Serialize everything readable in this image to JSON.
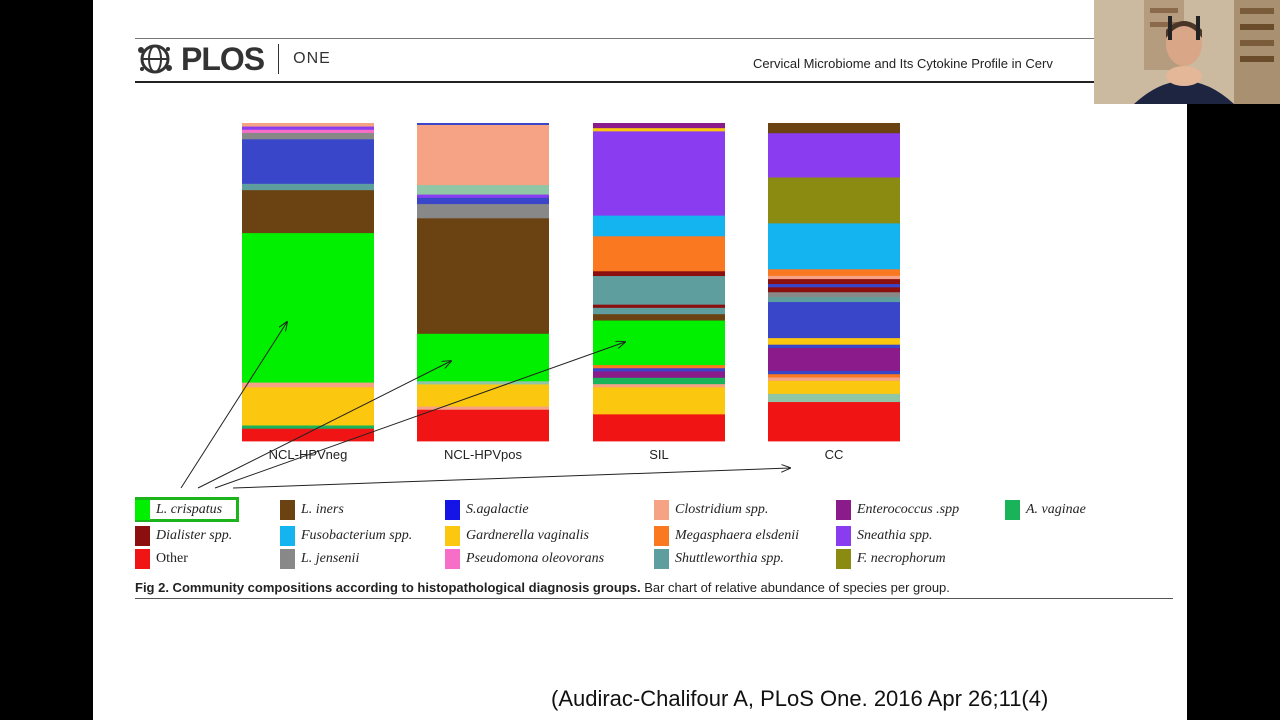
{
  "header": {
    "journal_logo": "PLOS",
    "journal_sub": "ONE",
    "running_title": "Cervical Microbiome and Its Cytokine Profile in Cerv"
  },
  "caption": {
    "label": "Fig 2. Community compositions according to histopathological diagnosis groups.",
    "text": "Bar chart of relative abundance of species per group."
  },
  "citation": "(Audirac-Chalifour A,  PLoS One. 2016 Apr 26;11(4)",
  "colors": {
    "L. crispatus": "#00f000",
    "L. iners": "#6b4211",
    "S.agalactie": "#1414e6",
    "Clostridium spp.": "#f5a285",
    "Enterococcus .spp": "#8b1a8b",
    "A. vaginae": "#19b35a",
    "Dialister spp.": "#8b0f0f",
    "Fusobacterium spp.": "#14b4f0",
    "Gardnerella vaginalis": "#fcc70f",
    "Megasphaera elsdenii": "#fa7820",
    "Sneathia spp.": "#8a3cf0",
    "Other": "#f01414",
    "L. jensenii": "#888888",
    "Pseudomona oleovorans": "#f76ec8",
    "Shuttleworthia spp.": "#5f9e9e",
    "F. necrophorum": "#8b8b11",
    "Misc blue": "#3a46c9",
    "Misc gray-green": "#8fc7a6"
  },
  "legend": [
    {
      "label": "L. crispatus",
      "italic": true
    },
    {
      "label": "L. iners",
      "italic": true
    },
    {
      "label": "S.agalactie",
      "italic": true
    },
    {
      "label": "Clostridium spp.",
      "italic": true
    },
    {
      "label": "Enterococcus .spp",
      "italic": true
    },
    {
      "label": "A. vaginae",
      "italic": true
    },
    {
      "label": "Dialister spp.",
      "italic": true
    },
    {
      "label": "Fusobacterium spp.",
      "italic": true
    },
    {
      "label": "Gardnerella vaginalis",
      "italic": true
    },
    {
      "label": "Megasphaera elsdenii",
      "italic": true
    },
    {
      "label": "Sneathia spp.",
      "italic": true
    },
    {
      "label": "Other",
      "italic": false
    },
    {
      "label": "L. jensenii",
      "italic": true
    },
    {
      "label": "Pseudomona oleovorans",
      "italic": true
    },
    {
      "label": "Shuttleworthia spp.",
      "italic": true
    },
    {
      "label": "F. necrophorum",
      "italic": true
    }
  ],
  "chart_data": {
    "type": "bar",
    "stacked": true,
    "orientation": "vertical",
    "categories": [
      "NCL-HPVneg",
      "NCL-HPVpos",
      "SIL",
      "CC"
    ],
    "ylim": [
      0,
      100
    ],
    "unit": "relative abundance (%)",
    "bars": [
      {
        "category": "NCL-HPVneg",
        "segments": [
          {
            "name": "Other",
            "value": 4
          },
          {
            "name": "A. vaginae",
            "value": 1
          },
          {
            "name": "Gardnerella vaginalis",
            "value": 12
          },
          {
            "name": "Clostridium spp.",
            "value": 1.5
          },
          {
            "name": "L. crispatus",
            "value": 47
          },
          {
            "name": "L. iners",
            "value": 13.5
          },
          {
            "name": "Shuttleworthia spp.",
            "value": 2
          },
          {
            "name": "Misc blue",
            "value": 14
          },
          {
            "name": "L. jensenii",
            "value": 2
          },
          {
            "name": "Pseudomona oleovorans",
            "value": 1
          },
          {
            "name": "Sneathia spp.",
            "value": 1
          },
          {
            "name": "Clostridium spp.",
            "value": 1
          }
        ]
      },
      {
        "category": "NCL-HPVpos",
        "segments": [
          {
            "name": "Other",
            "value": 10
          },
          {
            "name": "Clostridium spp.",
            "value": 1
          },
          {
            "name": "Gardnerella vaginalis",
            "value": 7
          },
          {
            "name": "Misc gray-green",
            "value": 1
          },
          {
            "name": "L. crispatus",
            "value": 15
          },
          {
            "name": "L. iners",
            "value": 36.5
          },
          {
            "name": "L. jensenii",
            "value": 4.5
          },
          {
            "name": "Misc blue",
            "value": 2
          },
          {
            "name": "Sneathia spp.",
            "value": 1
          },
          {
            "name": "Misc gray-green",
            "value": 3
          },
          {
            "name": "Clostridium spp.",
            "value": 19
          },
          {
            "name": "Misc blue",
            "value": 0.5
          }
        ]
      },
      {
        "category": "SIL",
        "segments": [
          {
            "name": "Other",
            "value": 8.5
          },
          {
            "name": "Gardnerella vaginalis",
            "value": 8.5
          },
          {
            "name": "Clostridium spp.",
            "value": 1
          },
          {
            "name": "A. vaginae",
            "value": 2
          },
          {
            "name": "Enterococcus .spp",
            "value": 2
          },
          {
            "name": "Misc blue",
            "value": 1
          },
          {
            "name": "Megasphaera elsdenii",
            "value": 1
          },
          {
            "name": "L. crispatus",
            "value": 14
          },
          {
            "name": "L. iners",
            "value": 2
          },
          {
            "name": "Shuttleworthia spp.",
            "value": 2
          },
          {
            "name": "Dialister spp.",
            "value": 1
          },
          {
            "name": "Shuttleworthia spp.",
            "value": 9
          },
          {
            "name": "Dialister spp.",
            "value": 1.5
          },
          {
            "name": "Megasphaera elsdenii",
            "value": 11
          },
          {
            "name": "Fusobacterium spp.",
            "value": 6.5
          },
          {
            "name": "Sneathia spp.",
            "value": 26.5
          },
          {
            "name": "Gardnerella vaginalis",
            "value": 1
          },
          {
            "name": "Enterococcus .spp",
            "value": 1.5
          }
        ]
      },
      {
        "category": "CC",
        "segments": [
          {
            "name": "Other",
            "value": 12
          },
          {
            "name": "Misc gray-green",
            "value": 2.5
          },
          {
            "name": "Gardnerella vaginalis",
            "value": 4
          },
          {
            "name": "Clostridium spp.",
            "value": 1
          },
          {
            "name": "Megasphaera elsdenii",
            "value": 1
          },
          {
            "name": "Misc blue",
            "value": 1
          },
          {
            "name": "Enterococcus .spp",
            "value": 7
          },
          {
            "name": "Misc blue",
            "value": 1
          },
          {
            "name": "Gardnerella vaginalis",
            "value": 2
          },
          {
            "name": "Misc blue",
            "value": 11
          },
          {
            "name": "Shuttleworthia spp.",
            "value": 1.5
          },
          {
            "name": "L. jensenii",
            "value": 1.5
          },
          {
            "name": "Dialister spp.",
            "value": 1.5
          },
          {
            "name": "Misc blue",
            "value": 1
          },
          {
            "name": "Dialister spp.",
            "value": 1.5
          },
          {
            "name": "Clostridium spp.",
            "value": 1
          },
          {
            "name": "Megasphaera elsdenii",
            "value": 2
          },
          {
            "name": "Fusobacterium spp.",
            "value": 14
          },
          {
            "name": "F. necrophorum",
            "value": 14
          },
          {
            "name": "Sneathia spp.",
            "value": 13.5
          },
          {
            "name": "L. iners",
            "value": 3
          }
        ]
      }
    ],
    "annotations": [
      {
        "type": "arrow",
        "from": "L. crispatus legend",
        "to": "NCL-HPVneg"
      },
      {
        "type": "arrow",
        "from": "L. crispatus legend",
        "to": "NCL-HPVpos"
      },
      {
        "type": "arrow",
        "from": "L. crispatus legend",
        "to": "SIL"
      },
      {
        "type": "arrow",
        "from": "L. crispatus legend",
        "to": "CC"
      }
    ],
    "legend_position": "bottom",
    "grid": false
  }
}
